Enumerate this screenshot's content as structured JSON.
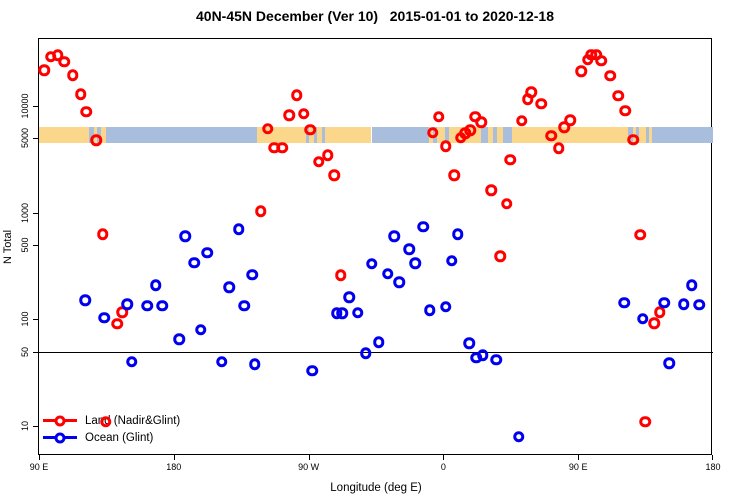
{
  "title": "40N-45N December (Ver 10)   2015-01-01 to 2020-12-18",
  "legend": {
    "items": [
      {
        "label": "Land (Nadir&Glint)",
        "color": "#FF0000"
      },
      {
        "label": "Ocean (Glint)",
        "color": "#0000EE"
      }
    ]
  },
  "chart_data": {
    "type": "scatter",
    "title": "40N-45N December (Ver 10)   2015-01-01 to 2020-12-18",
    "xlabel": "Longitude (deg E)",
    "ylabel": "N Total",
    "x_axis": {
      "min": 90,
      "max": 540,
      "ticks": [
        {
          "pos": 90,
          "label": "90 E"
        },
        {
          "pos": 180,
          "label": "180"
        },
        {
          "pos": 270,
          "label": "90 W"
        },
        {
          "pos": 360,
          "label": "0"
        },
        {
          "pos": 450,
          "label": "90 E"
        },
        {
          "pos": 540,
          "label": "180"
        }
      ]
    },
    "y_axis": {
      "scale": "log10",
      "ticks": [
        10,
        50,
        100,
        500,
        1000,
        5000,
        10000
      ],
      "reference_line": 50
    },
    "grid": false,
    "legend_position": "bottom-left",
    "map_band": {
      "description": "40N-45N latitude strip of world map drawn across plot near N=5000",
      "n_center": 5000,
      "land_color": "#FBD78C",
      "ocean_color": "#A9BEDD",
      "segments": [
        [
          90,
          123.5,
          "land"
        ],
        [
          123.5,
          126.5,
          "ocean"
        ],
        [
          126.5,
          129,
          "land"
        ],
        [
          129,
          131.5,
          "ocean"
        ],
        [
          131.5,
          135,
          "land"
        ],
        [
          135,
          235.5,
          "ocean"
        ],
        [
          235.5,
          268,
          "land"
        ],
        [
          268,
          270,
          "ocean"
        ],
        [
          270,
          273.5,
          "land"
        ],
        [
          273.5,
          275.5,
          "ocean"
        ],
        [
          275.5,
          279,
          "land"
        ],
        [
          279,
          281,
          "ocean"
        ],
        [
          281,
          312,
          "land"
        ],
        [
          312,
          350.5,
          "ocean"
        ],
        [
          350.5,
          353,
          "land"
        ],
        [
          353,
          356,
          "ocean"
        ],
        [
          356,
          361,
          "land"
        ],
        [
          361,
          364,
          "ocean"
        ],
        [
          364,
          385,
          "land"
        ],
        [
          385,
          390,
          "ocean"
        ],
        [
          390,
          393,
          "land"
        ],
        [
          393,
          396,
          "ocean"
        ],
        [
          396,
          400,
          "land"
        ],
        [
          400,
          406,
          "ocean"
        ],
        [
          406,
          483.5,
          "land"
        ],
        [
          483.5,
          486.5,
          "ocean"
        ],
        [
          486.5,
          488.5,
          "land"
        ],
        [
          488.5,
          490.5,
          "ocean"
        ],
        [
          490.5,
          495,
          "land"
        ],
        [
          495,
          497,
          "ocean"
        ],
        [
          497,
          499.5,
          "land"
        ],
        [
          499.5,
          540,
          "ocean"
        ]
      ]
    },
    "series": [
      {
        "name": "Land (Nadir&Glint)",
        "color": "#FF0000",
        "marker": "open-circle",
        "points": [
          [
            93.5,
            21600
          ],
          [
            98,
            28800
          ],
          [
            102.5,
            30000
          ],
          [
            106.9,
            26000
          ],
          [
            112.5,
            19500
          ],
          [
            118,
            12900
          ],
          [
            121.4,
            8800
          ],
          [
            128.3,
            4800
          ],
          [
            132.7,
            630
          ],
          [
            134.7,
            11
          ],
          [
            142.3,
            91
          ],
          [
            145.6,
            117
          ],
          [
            238.2,
            1030
          ],
          [
            242.7,
            6100
          ],
          [
            247.1,
            4060
          ],
          [
            252.3,
            4060
          ],
          [
            257.1,
            8200
          ],
          [
            262,
            12600
          ],
          [
            266.7,
            8500
          ],
          [
            271.2,
            6000
          ],
          [
            276.7,
            3000
          ],
          [
            282.8,
            3460
          ],
          [
            287.2,
            2250
          ],
          [
            291.6,
            260
          ],
          [
            352.9,
            5620
          ],
          [
            356.8,
            7900
          ],
          [
            361.7,
            4200
          ],
          [
            367.2,
            2240
          ],
          [
            371.7,
            5050
          ],
          [
            374.6,
            5530
          ],
          [
            378,
            5900
          ],
          [
            381.4,
            7900
          ],
          [
            385.3,
            7080
          ],
          [
            391.8,
            1630
          ],
          [
            398,
            390
          ],
          [
            402.3,
            1220
          ],
          [
            404.5,
            3150
          ],
          [
            412.3,
            7240
          ],
          [
            416.3,
            11600
          ],
          [
            418.5,
            13400
          ],
          [
            425.2,
            10450
          ],
          [
            431.9,
            5270
          ],
          [
            437,
            4000
          ],
          [
            440.7,
            6310
          ],
          [
            444.7,
            7390
          ],
          [
            451.9,
            21100
          ],
          [
            456.4,
            27000
          ],
          [
            458.6,
            30200
          ],
          [
            461.9,
            30200
          ],
          [
            465.3,
            26600
          ],
          [
            471.5,
            19200
          ],
          [
            476.8,
            12500
          ],
          [
            481.3,
            9000
          ],
          [
            486.9,
            4830
          ],
          [
            491.3,
            620
          ],
          [
            494.9,
            11
          ],
          [
            500.8,
            92
          ],
          [
            504.6,
            117
          ]
        ]
      },
      {
        "name": "Ocean (Glint)",
        "color": "#0000EE",
        "marker": "open-circle",
        "points": [
          [
            120.9,
            152
          ],
          [
            133.6,
            104
          ],
          [
            149,
            139
          ],
          [
            151.9,
            40
          ],
          [
            162.3,
            135
          ],
          [
            167.9,
            209
          ],
          [
            172.3,
            134
          ],
          [
            183.5,
            65
          ],
          [
            187.5,
            605
          ],
          [
            193.5,
            340
          ],
          [
            197.9,
            80
          ],
          [
            202.4,
            423
          ],
          [
            212,
            40
          ],
          [
            216.9,
            201
          ],
          [
            223.5,
            700
          ],
          [
            226.9,
            135
          ],
          [
            232.4,
            261
          ],
          [
            234.2,
            38
          ],
          [
            272.3,
            33
          ],
          [
            288.9,
            114
          ],
          [
            292.3,
            114
          ],
          [
            297.2,
            162
          ],
          [
            302.8,
            115
          ],
          [
            308.3,
            48
          ],
          [
            312.3,
            331
          ],
          [
            316.8,
            61
          ],
          [
            322.8,
            269
          ],
          [
            327.2,
            605
          ],
          [
            330.6,
            224
          ],
          [
            337.3,
            455
          ],
          [
            341.3,
            335
          ],
          [
            346.6,
            740
          ],
          [
            351,
            122
          ],
          [
            361.7,
            131
          ],
          [
            365.7,
            355
          ],
          [
            369.6,
            630
          ],
          [
            377.3,
            60
          ],
          [
            381.8,
            44
          ],
          [
            386.3,
            46
          ],
          [
            395.2,
            42
          ],
          [
            410.3,
            8
          ],
          [
            480.9,
            143
          ],
          [
            493.1,
            102
          ],
          [
            507.5,
            143
          ],
          [
            510.8,
            39
          ],
          [
            520.4,
            139
          ],
          [
            525.9,
            209
          ],
          [
            530.8,
            138
          ]
        ]
      }
    ]
  }
}
